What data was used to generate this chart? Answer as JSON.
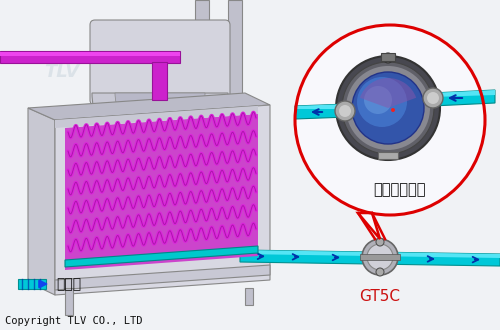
{
  "bg_color": "#f0f2f5",
  "copyright_text": "Copyright TLV CO., LTD",
  "copyright_fontsize": 7.5,
  "copyright_color": "#111111",
  "legend_label": "ドレン",
  "legend_fontsize": 10,
  "callout_label": "後から見た図",
  "callout_fontsize": 10.5,
  "callout_color": "#111111",
  "gt5c_label": "GT5C",
  "gt5c_fontsize": 11,
  "gt5c_color": "#cc1111",
  "circle_color": "#dd0000",
  "circle_linewidth": 2.2,
  "coil_color": "#dd44dd",
  "coil_bg": "#cc33cc",
  "pipe_cyan": "#00d4e8",
  "pipe_teal": "#00aaaa",
  "pipe_dark_blue": "#0044cc",
  "steam_pipe_color": "#cc22cc",
  "box_fill": "#d8d8e0",
  "box_top": "#c0c0cc",
  "box_edge": "#aaaaaa",
  "box_inner_bg": "#cc33cc",
  "leg_color": "#c0c0cc",
  "duct_fill": "#d0d0dc",
  "trap_dark": "#888890",
  "trap_mid": "#666670",
  "trap_light": "#aaaaaa",
  "watermark_color": "#c8d4dc",
  "watermark_alpha": 0.5
}
